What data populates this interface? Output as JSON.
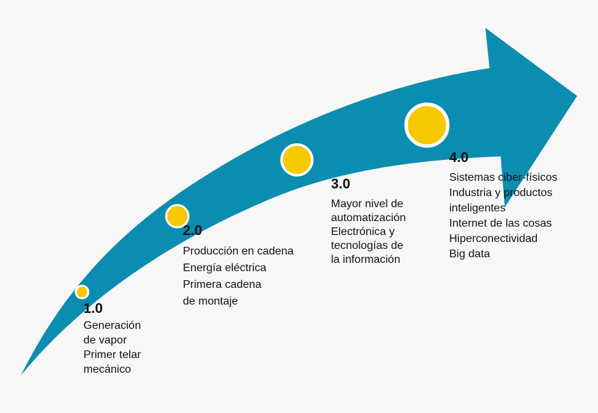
{
  "stages": [
    {
      "label": "1.0",
      "lines": [
        "Generación",
        "de vapor",
        "Primer telar",
        "mecánico"
      ]
    },
    {
      "label": "2.0",
      "lines": [
        "Producción en cadena",
        "Energía eléctrica",
        "Primera cadena",
        "de montaje"
      ]
    },
    {
      "label": "3.0",
      "lines": [
        "Mayor nivel de",
        "automatización",
        "Electrónica y",
        "tecnologías de",
        "la información"
      ]
    },
    {
      "label": "4.0",
      "lines": [
        "Sistemas ciber-físicos",
        "Industria y productos",
        "inteligentes",
        "Internet de las cosas",
        "Hiperconectividad",
        "Big data"
      ]
    }
  ]
}
